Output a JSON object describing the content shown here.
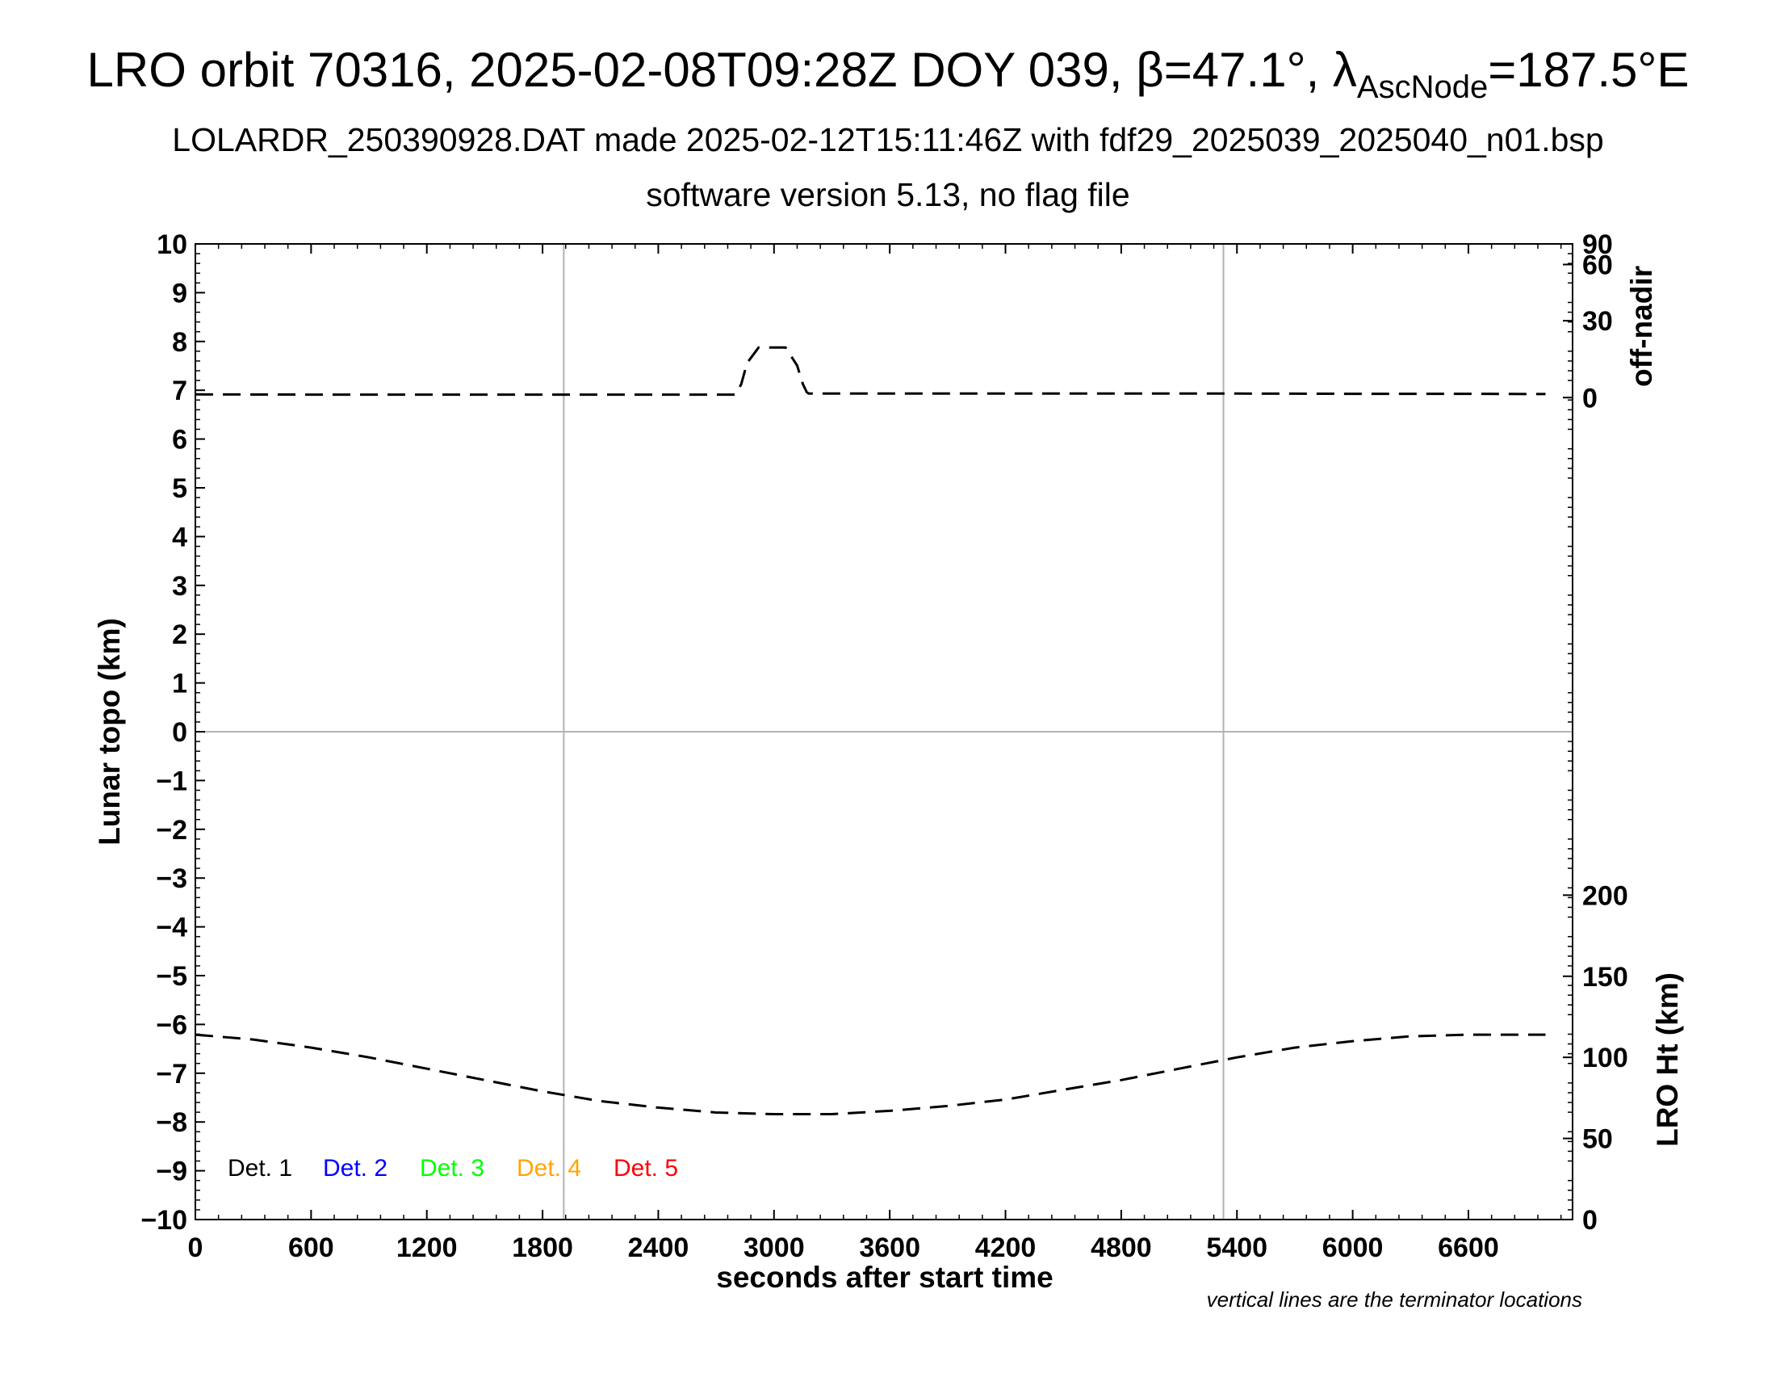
{
  "chart_data": {
    "type": "line",
    "title_parts": {
      "prefix": "LRO orbit 70316, 2025-02-08T09:28Z DOY 039, ",
      "beta_symbol": "β",
      "beta_value": "=47.1°, ",
      "lambda_symbol": "λ",
      "lambda_subscript": "AscNode",
      "lambda_value": "=187.5°E"
    },
    "subtitle_1": "LOLARDR_250390928.DAT made 2025-02-12T15:11:46Z with fdf29_2025039_2025040_n01.bsp",
    "subtitle_2": "software version 5.13, no flag file",
    "xlabel": "seconds after start time",
    "ylabel_left": "Lunar topo (km)",
    "ylabel_right_top": "off-nadir",
    "ylabel_right_bottom": "LRO Ht (km)",
    "note": "vertical lines are the terminator locations",
    "xlim": [
      0,
      7140
    ],
    "ylim": [
      -10,
      10
    ],
    "x_ticks": [
      0,
      600,
      1200,
      1800,
      2400,
      3000,
      3600,
      4200,
      4800,
      5400,
      6000,
      6600
    ],
    "y_ticks": [
      -10,
      -9,
      -8,
      -7,
      -6,
      -5,
      -4,
      -3,
      -2,
      -1,
      0,
      1,
      2,
      3,
      4,
      5,
      6,
      7,
      8,
      9,
      10
    ],
    "y_tick_labels": [
      "−10",
      "−9",
      "−8",
      "−7",
      "−6",
      "−5",
      "−4",
      "−3",
      "−2",
      "−1",
      "0",
      "1",
      "2",
      "3",
      "4",
      "5",
      "6",
      "7",
      "8",
      "9",
      "10"
    ],
    "offnadir_ticks": [
      0,
      30,
      60,
      90
    ],
    "ht_ticks": [
      0,
      50,
      100,
      150,
      200
    ],
    "terminator_x": [
      1910,
      5330
    ],
    "grid_y": [
      0
    ],
    "legend": [
      {
        "label": "Det. 1",
        "color": "#000000"
      },
      {
        "label": "Det. 2",
        "color": "#0000ff"
      },
      {
        "label": "Det. 3",
        "color": "#00ff00"
      },
      {
        "label": "Det. 4",
        "color": "#ffa500"
      },
      {
        "label": "Det. 5",
        "color": "#ff0000"
      }
    ],
    "legend_placement": "bottom-left",
    "series": [
      {
        "axis": "off-nadir (deg)",
        "style": "dashed",
        "color": "#000000",
        "x": [
          0,
          600,
          1200,
          1800,
          2400,
          2800,
          2830,
          2860,
          2920,
          3000,
          3060,
          3120,
          3150,
          3170,
          3180,
          3600,
          4200,
          4800,
          5400,
          6000,
          6600,
          7000
        ],
        "y": [
          1.2,
          1.1,
          1.1,
          1.1,
          1.1,
          1.1,
          5,
          13,
          19,
          19,
          19,
          12,
          5,
          2,
          1.5,
          1.5,
          1.5,
          1.5,
          1.5,
          1.4,
          1.4,
          1.3
        ]
      },
      {
        "axis": "LRO Ht (km)",
        "style": "dashed",
        "color": "#000000",
        "x": [
          0,
          300,
          600,
          900,
          1200,
          1500,
          1800,
          2100,
          2400,
          2700,
          3000,
          3300,
          3600,
          3900,
          4200,
          4500,
          4800,
          5100,
          5400,
          5700,
          6000,
          6300,
          6600,
          6900,
          7000
        ],
        "y": [
          114,
          111,
          106,
          100,
          93,
          86,
          79,
          73,
          69,
          66,
          65,
          65,
          67,
          70,
          74,
          80,
          86,
          93,
          100,
          106,
          110,
          113,
          114,
          114,
          114
        ]
      }
    ]
  }
}
